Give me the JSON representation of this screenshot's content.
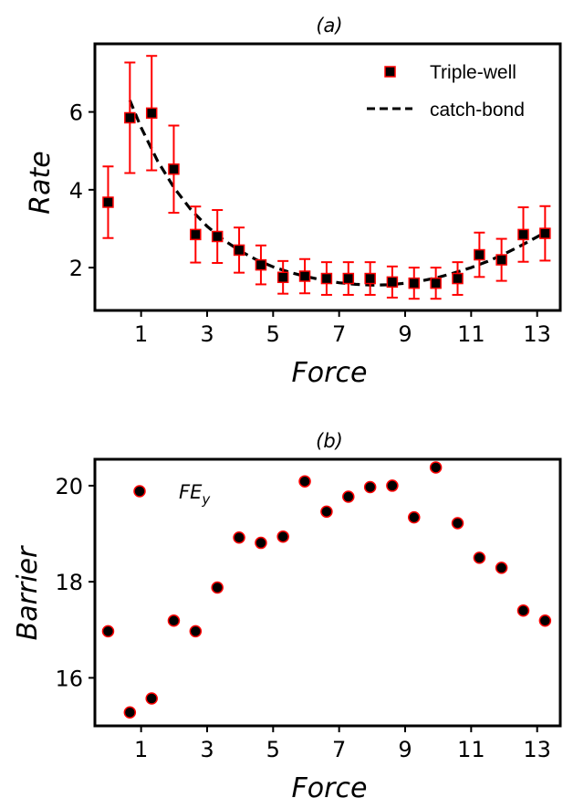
{
  "chart_data": [
    {
      "type": "scatter",
      "title": "(a)",
      "xlabel": "Force",
      "ylabel": "Rate",
      "xlim": [
        -0.4,
        13.7
      ],
      "ylim": [
        0.9,
        7.75
      ],
      "xticks": [
        1,
        3,
        5,
        7,
        9,
        11,
        13
      ],
      "yticks": [
        2,
        4,
        6
      ],
      "grid": false,
      "legend_position": "top-right",
      "series": [
        {
          "name": "Triple-well",
          "kind": "markers-with-errorbars",
          "marker": "square",
          "marker_color": "#000000",
          "edge_color": "#ff0000",
          "error_color": "#ff0000",
          "x": [
            0.0,
            0.66,
            1.32,
            1.99,
            2.65,
            3.31,
            3.97,
            4.63,
            5.3,
            5.96,
            6.62,
            7.28,
            7.94,
            8.61,
            9.27,
            9.93,
            10.59,
            11.25,
            11.92,
            12.58,
            13.24
          ],
          "y": [
            3.68,
            5.85,
            5.97,
            4.53,
            2.85,
            2.8,
            2.45,
            2.07,
            1.75,
            1.78,
            1.72,
            1.72,
            1.72,
            1.63,
            1.6,
            1.6,
            1.72,
            2.33,
            2.2,
            2.85,
            2.88
          ],
          "yerr": [
            0.92,
            1.42,
            1.47,
            1.12,
            0.72,
            0.68,
            0.58,
            0.5,
            0.42,
            0.44,
            0.42,
            0.42,
            0.42,
            0.4,
            0.4,
            0.4,
            0.42,
            0.57,
            0.54,
            0.7,
            0.7
          ]
        },
        {
          "name": "catch-bond",
          "kind": "dashed-line",
          "line_color": "#000000",
          "x": [
            0.66,
            1.0,
            1.5,
            2.0,
            2.5,
            3.0,
            3.5,
            4.0,
            4.5,
            5.0,
            5.5,
            6.0,
            6.5,
            7.0,
            7.5,
            8.0,
            8.5,
            9.0,
            9.5,
            10.0,
            10.5,
            11.0,
            11.5,
            12.0,
            12.5,
            13.24
          ],
          "y": [
            6.3,
            5.6,
            4.74,
            4.05,
            3.5,
            3.06,
            2.71,
            2.43,
            2.2,
            2.02,
            1.88,
            1.77,
            1.68,
            1.61,
            1.57,
            1.55,
            1.56,
            1.6,
            1.66,
            1.75,
            1.87,
            2.0,
            2.16,
            2.35,
            2.56,
            2.9
          ]
        }
      ]
    },
    {
      "type": "scatter",
      "title": "(b)",
      "xlabel": "Force",
      "ylabel": "Barrier",
      "xlim": [
        -0.4,
        13.7
      ],
      "ylim": [
        15.0,
        20.55
      ],
      "xticks": [
        1,
        3,
        5,
        7,
        9,
        11,
        13
      ],
      "yticks": [
        16,
        18,
        20
      ],
      "grid": false,
      "legend_position": "top-left",
      "series": [
        {
          "name": "FE",
          "name_subscript": "y",
          "kind": "markers",
          "marker": "circle",
          "marker_color": "#000000",
          "edge_color": "#ff0000",
          "x": [
            0.0,
            0.66,
            1.32,
            1.99,
            2.65,
            3.31,
            3.97,
            4.63,
            5.3,
            5.96,
            6.62,
            7.28,
            7.94,
            8.61,
            9.27,
            9.93,
            10.59,
            11.25,
            11.92,
            12.58,
            13.24
          ],
          "y": [
            16.97,
            15.28,
            15.57,
            17.19,
            16.97,
            17.88,
            18.92,
            18.81,
            18.94,
            20.09,
            19.46,
            19.77,
            19.97,
            20.0,
            19.34,
            20.38,
            19.22,
            18.5,
            18.29,
            17.4,
            17.19
          ]
        }
      ]
    }
  ]
}
